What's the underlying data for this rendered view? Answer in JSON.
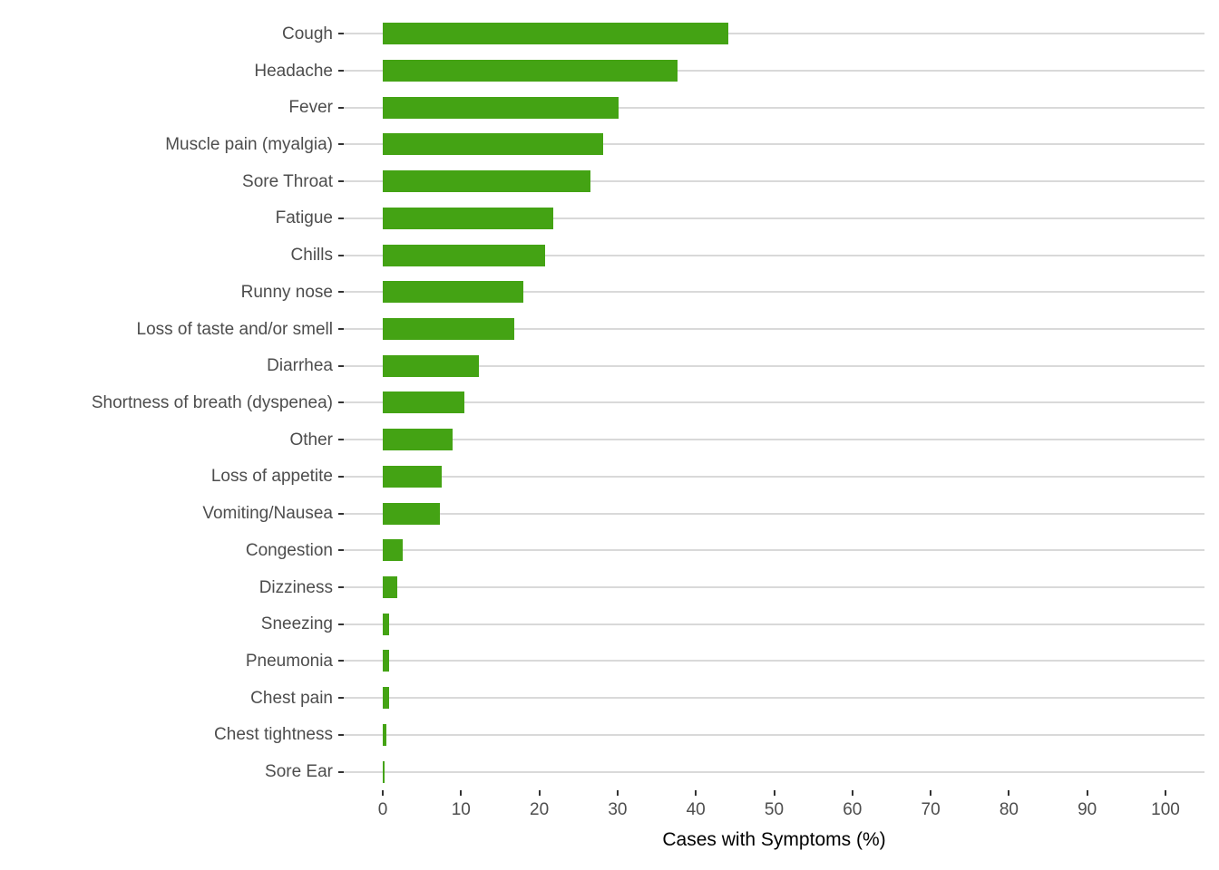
{
  "chart_data": {
    "type": "bar",
    "orientation": "horizontal",
    "title": "",
    "xlabel": "Cases with Symptoms (%)",
    "ylabel": "",
    "xlim": [
      0,
      100
    ],
    "xticks": [
      0,
      10,
      20,
      30,
      40,
      50,
      60,
      70,
      80,
      90,
      100
    ],
    "grid": "horizontal-major-only",
    "legend": "none",
    "categories": [
      "Cough",
      "Headache",
      "Fever",
      "Muscle pain (myalgia)",
      "Sore Throat",
      "Fatigue",
      "Chills",
      "Runny nose",
      "Loss of taste and/or smell",
      "Diarrhea",
      "Shortness of breath (dyspenea)",
      "Other",
      "Loss of appetite",
      "Vomiting/Nausea",
      "Congestion",
      "Dizziness",
      "Sneezing",
      "Pneumonia",
      "Chest pain",
      "Chest tightness",
      "Sore Ear"
    ],
    "values": [
      44.2,
      37.7,
      30.1,
      28.2,
      26.5,
      21.8,
      20.7,
      18.0,
      16.8,
      12.3,
      10.4,
      8.9,
      7.5,
      7.3,
      2.6,
      1.9,
      0.8,
      0.8,
      0.8,
      0.5,
      0.2
    ],
    "colors": {
      "bar": "#44A314",
      "gridline": "#D9D9D9",
      "axis_text": "#4D4D4D",
      "tick_mark": "#333333",
      "axis_title": "#000000",
      "background": "#FFFFFF"
    }
  }
}
